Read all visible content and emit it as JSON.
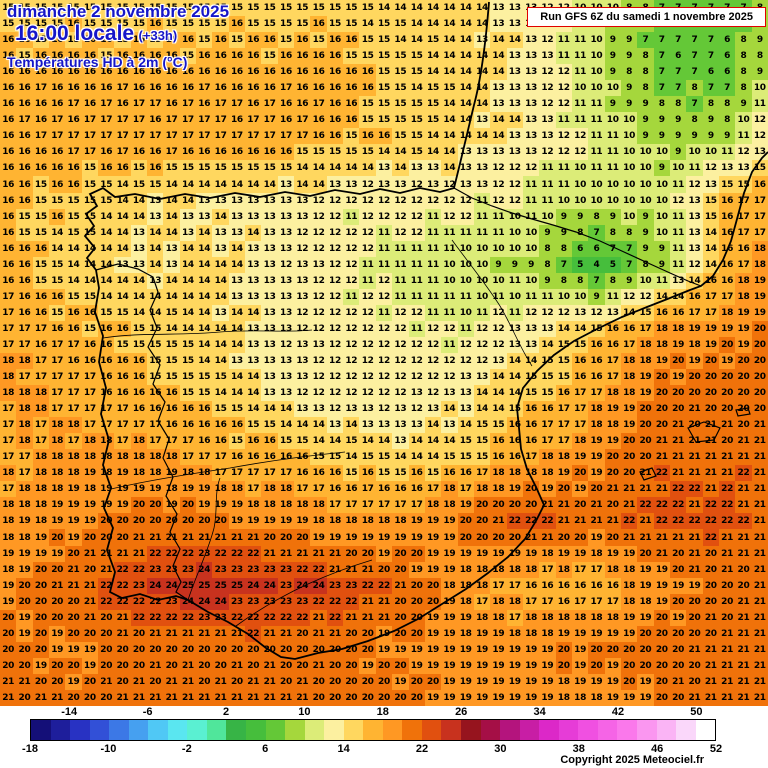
{
  "header": {
    "date_line": "dimanche 2 novembre 2025",
    "time_line": "16:00 locale",
    "time_offset": "(+33h)",
    "subtitle": "Températures HD à 2m (°C)"
  },
  "run_info": "Run GFS 6Z du samedi 1 novembre 2025",
  "copyright": "Copyright 2025 Meteociel.fr",
  "chart_data": {
    "type": "heatmap",
    "title": "Températures HD à 2m (°C)",
    "model_run": "Run GFS 6Z du samedi 1 novembre 2025",
    "valid_time": "dimanche 2 novembre 2025 16:00 locale (+33h)",
    "region": "Iberian peninsula",
    "units": "°C",
    "grid": {
      "cols": 47,
      "rows": 44,
      "coarse_col_index": [
        0,
        4,
        8,
        12,
        16,
        20,
        24,
        28,
        32,
        36,
        40,
        44,
        46
      ],
      "coarse_row_index": [
        0,
        4,
        8,
        12,
        16,
        20,
        24,
        28,
        32,
        36,
        40,
        43
      ],
      "coarse_temps": [
        [
          15,
          15,
          15,
          15,
          15,
          15,
          14,
          14,
          13,
          10,
          7,
          7,
          8
        ],
        [
          16,
          16,
          16,
          16,
          16,
          16,
          15,
          14,
          13,
          10,
          7,
          6,
          9
        ],
        [
          16,
          17,
          17,
          17,
          17,
          16,
          15,
          14,
          13,
          11,
          9,
          9,
          12
        ],
        [
          16,
          15,
          14,
          13,
          13,
          12,
          12,
          12,
          11,
          10,
          10,
          16,
          17
        ],
        [
          16,
          14,
          13,
          14,
          13,
          12,
          11,
          10,
          9,
          4,
          9,
          16,
          18
        ],
        [
          17,
          16,
          15,
          14,
          13,
          12,
          12,
          11,
          13,
          15,
          18,
          19,
          20
        ],
        [
          18,
          17,
          16,
          15,
          13,
          12,
          12,
          13,
          15,
          17,
          20,
          20,
          20
        ],
        [
          17,
          18,
          18,
          17,
          16,
          15,
          14,
          15,
          17,
          19,
          21,
          21,
          21
        ],
        [
          18,
          19,
          20,
          20,
          19,
          18,
          18,
          20,
          22,
          21,
          22,
          22,
          21
        ],
        [
          19,
          21,
          23,
          25,
          24,
          23,
          21,
          18,
          16,
          16,
          19,
          20,
          21
        ],
        [
          20,
          19,
          20,
          20,
          20,
          20,
          19,
          19,
          19,
          20,
          20,
          21,
          21
        ],
        [
          21,
          20,
          21,
          21,
          21,
          20,
          20,
          19,
          19,
          18,
          20,
          21,
          21
        ]
      ]
    },
    "color_scale": {
      "min": -18,
      "max": 52,
      "step": 2,
      "band_colors": [
        "#140f78",
        "#1e1e9b",
        "#2832c3",
        "#3250d7",
        "#3c78e6",
        "#46a0f0",
        "#50c8f5",
        "#5ae6f0",
        "#5af0d2",
        "#50e69b",
        "#37b446",
        "#46be3c",
        "#64c837",
        "#a5d73c",
        "#dcec78",
        "#fcf0a0",
        "#ffd75f",
        "#ffb432",
        "#ff9823",
        "#f0720a",
        "#e1500f",
        "#c8321e",
        "#96141e",
        "#a50f46",
        "#b4147d",
        "#c81ea5",
        "#dc28c8",
        "#e63cd7",
        "#f050e1",
        "#f564e6",
        "#fa78eb",
        "#fa96f0",
        "#fab4f5",
        "#fad7fa",
        "#ffffff"
      ],
      "top_labels": [
        -14,
        -6,
        2,
        10,
        18,
        26,
        34,
        42,
        50
      ],
      "bottom_labels": [
        -18,
        -10,
        -2,
        6,
        14,
        22,
        30,
        38,
        46,
        52
      ]
    }
  }
}
